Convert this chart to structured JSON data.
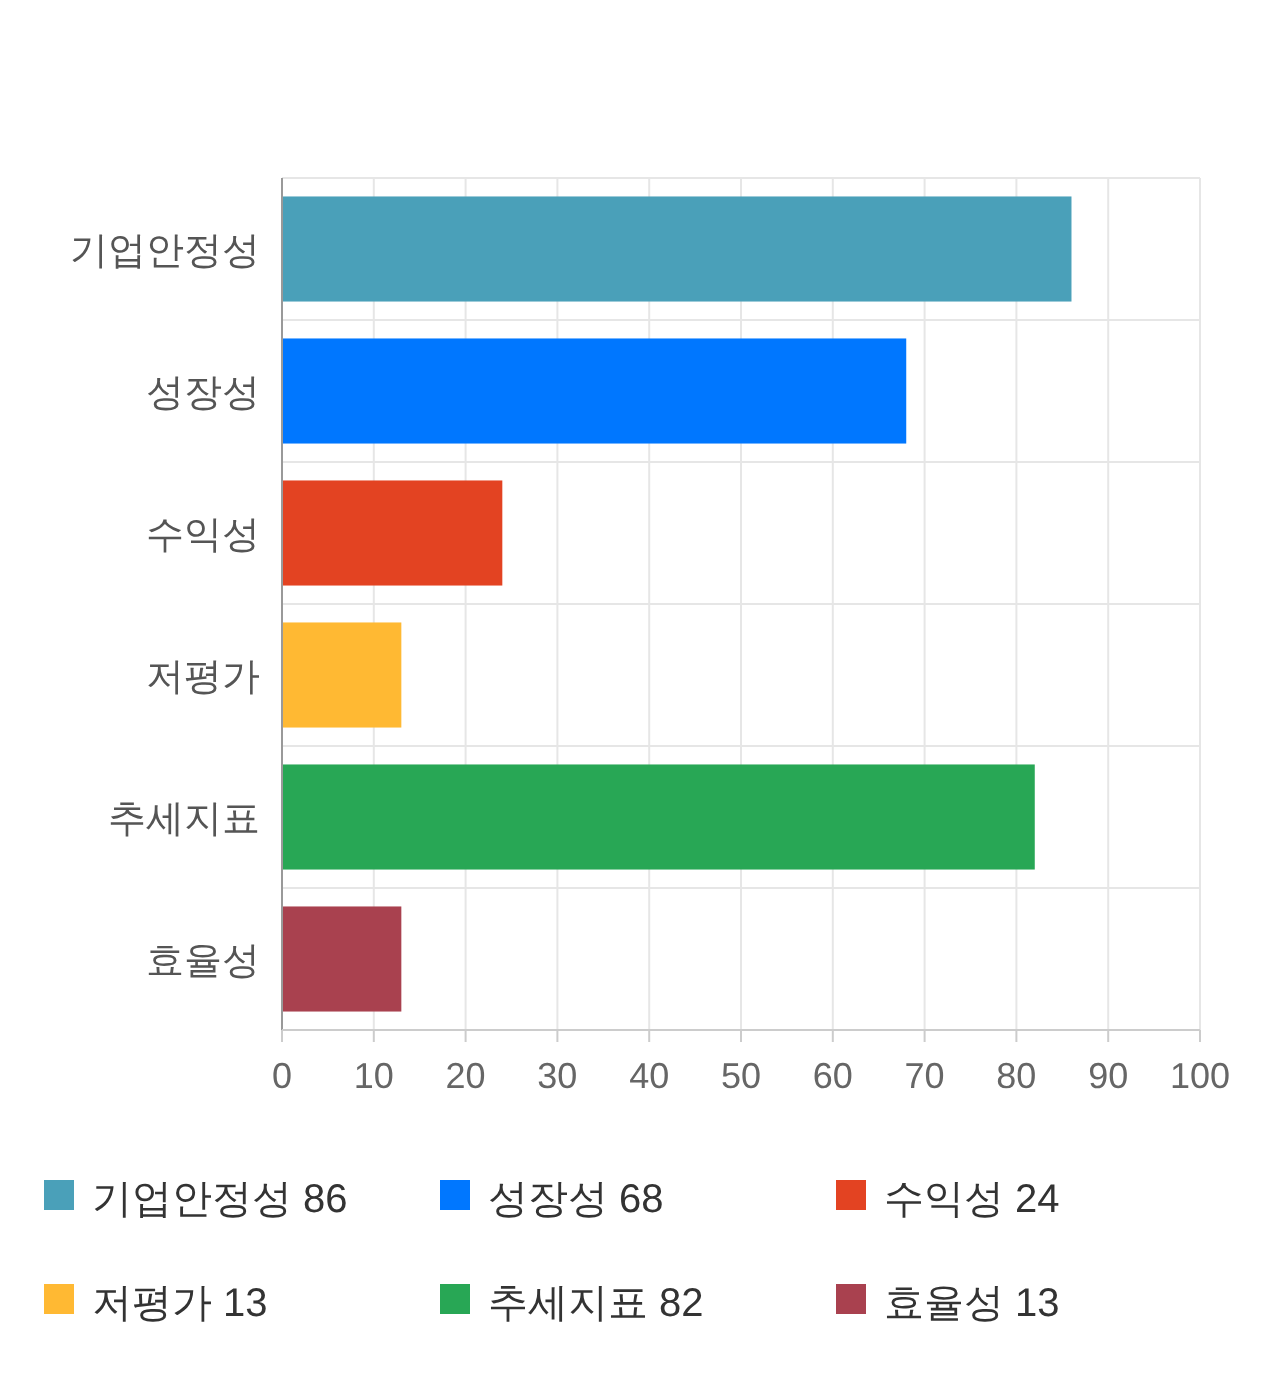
{
  "chart_data": {
    "type": "bar",
    "orientation": "horizontal",
    "categories": [
      "기업안정성",
      "성장성",
      "수익성",
      "저평가",
      "추세지표",
      "효율성"
    ],
    "series": [
      {
        "name": "기업안정성 86",
        "color": "#4aa0b9",
        "values": [
          86,
          null,
          null,
          null,
          null,
          null
        ]
      },
      {
        "name": "성장성 68",
        "color": "#0077ff",
        "values": [
          null,
          68,
          null,
          null,
          null,
          null
        ]
      },
      {
        "name": "수익성 24",
        "color": "#e34322",
        "values": [
          null,
          null,
          24,
          null,
          null,
          null
        ]
      },
      {
        "name": "저평가 13",
        "color": "#ffb933",
        "values": [
          null,
          null,
          null,
          13,
          null,
          null
        ]
      },
      {
        "name": "추세지표 82",
        "color": "#28a755",
        "values": [
          null,
          null,
          null,
          null,
          82,
          null
        ]
      },
      {
        "name": "효율성 13",
        "color": "#a9414f",
        "values": [
          null,
          null,
          null,
          null,
          null,
          13
        ]
      }
    ],
    "xlim": [
      0,
      100
    ],
    "xticks": [
      0,
      10,
      20,
      30,
      40,
      50,
      60,
      70,
      80,
      90,
      100
    ],
    "grid": true,
    "legend": "bottom"
  }
}
